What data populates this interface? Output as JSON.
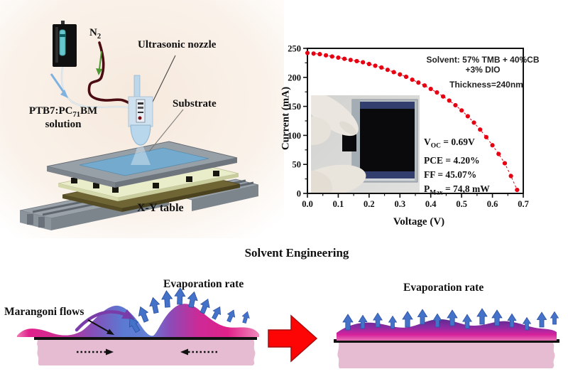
{
  "apparatus": {
    "n2_base": "N",
    "n2_sub": "2",
    "ultrasonic_nozzle": "Ultrasonic nozzle",
    "substrate": "Substrate",
    "solution_pre": "PTB7:PC",
    "solution_sub": "71",
    "solution_post": "BM",
    "solution_line2": "solution",
    "xy_table": "X-Y table"
  },
  "section_title": "Solvent Engineering",
  "left_panel": {
    "marangoni_label": "Marangoni flows",
    "evaporation_label": "Evaporation rate"
  },
  "right_panel": {
    "evaporation_label": "Evaporation rate"
  },
  "colors": {
    "curve_red": "#e60012",
    "block_arrow_red": "#fe0505",
    "flow_arrow_blue": "#4472c8",
    "film_purple": "#5e2a92",
    "film_magenta": "#d6219c",
    "substrate_pink": "#e6bcd2"
  },
  "chart_data": {
    "type": "scatter",
    "title": "",
    "xlabel": "Voltage (V)",
    "ylabel": "Current (mA)",
    "xlim": [
      0,
      0.7
    ],
    "ylim": [
      0,
      250
    ],
    "grid": false,
    "legend": "none",
    "xticks": [
      0.0,
      0.1,
      0.2,
      0.3,
      0.4,
      0.5,
      0.6,
      0.7
    ],
    "xtick_labels": [
      "0.0",
      "0.1",
      "0.2",
      "0.3",
      "0.4",
      "0.5",
      "0.6",
      "0.7"
    ],
    "yticks": [
      0,
      50,
      100,
      150,
      200,
      250
    ],
    "ytick_labels": [
      "0",
      "50",
      "100",
      "150",
      "200",
      "250"
    ],
    "series": [
      {
        "name": "I-V curve",
        "color": "#e60012",
        "x": [
          0.0,
          0.02,
          0.04,
          0.06,
          0.08,
          0.1,
          0.12,
          0.14,
          0.16,
          0.18,
          0.2,
          0.22,
          0.24,
          0.26,
          0.28,
          0.3,
          0.32,
          0.34,
          0.36,
          0.38,
          0.4,
          0.42,
          0.44,
          0.46,
          0.48,
          0.5,
          0.52,
          0.54,
          0.56,
          0.58,
          0.6,
          0.62,
          0.64,
          0.66,
          0.68
        ],
        "y": [
          242,
          241,
          240,
          238,
          236,
          234,
          232,
          230,
          228,
          226,
          223,
          220,
          217,
          213,
          209,
          205,
          201,
          196,
          191,
          186,
          180,
          174,
          167,
          160,
          152,
          143,
          133,
          122,
          110,
          97,
          83,
          68,
          52,
          30,
          6
        ]
      }
    ],
    "annotations": {
      "solvent_line1": "Solvent: 57% TMB + 40%CB",
      "solvent_line2": "+3% DIO",
      "thickness": "Thickness=240nm",
      "voc_base": "V",
      "voc_sub": "OC",
      "voc_rest": "= 0.69V",
      "pce": "PCE = 4.20%",
      "ff": "FF = 45.07%",
      "pmax_base": "P",
      "pmax_sub": "Max",
      "pmax_rest": "= 74,8 mW"
    }
  }
}
